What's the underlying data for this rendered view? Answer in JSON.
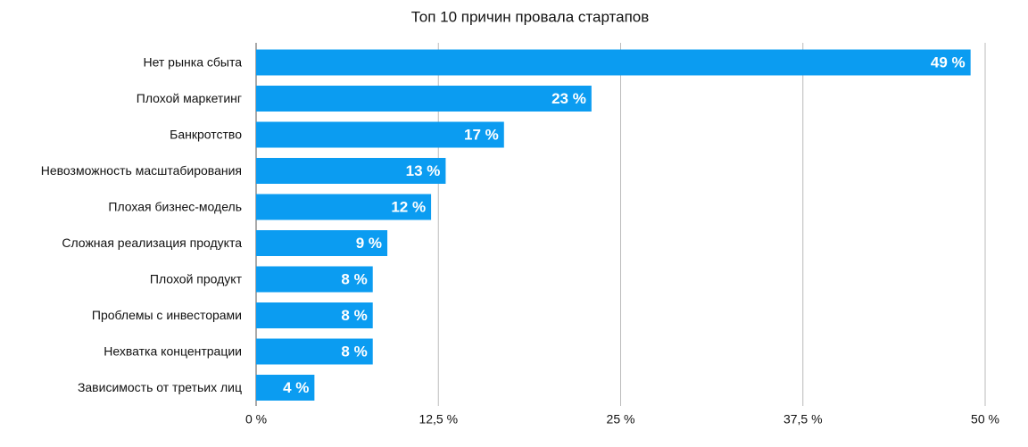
{
  "chart_data": {
    "type": "hbar",
    "title": "Топ 10 причин провала стартапов",
    "categories": [
      "Нет рынка сбыта",
      "Плохой маркетинг",
      "Банкротство",
      "Невозможность масштабирования",
      "Плохая бизнес-модель",
      "Сложная реализация продукта",
      "Плохой продукт",
      "Проблемы с инвесторами",
      "Нехватка концентрации",
      "Зависимость от третьих лиц"
    ],
    "values": [
      49,
      23,
      17,
      13,
      12,
      9,
      8,
      8,
      8,
      4
    ],
    "value_labels": [
      "49 %",
      "23 %",
      "17 %",
      "13 %",
      "12 %",
      "9 %",
      "8 %",
      "8 %",
      "8 %",
      "4 %"
    ],
    "color": "#0b9cf1",
    "xlim": [
      0,
      50
    ],
    "xticks": [
      {
        "value": 0,
        "label": "0 %"
      },
      {
        "value": 12.5,
        "label": "12,5 %"
      },
      {
        "value": 25,
        "label": "25 %"
      },
      {
        "value": 37.5,
        "label": "37,5 %"
      },
      {
        "value": 50,
        "label": "50 %"
      }
    ],
    "grid": true
  }
}
